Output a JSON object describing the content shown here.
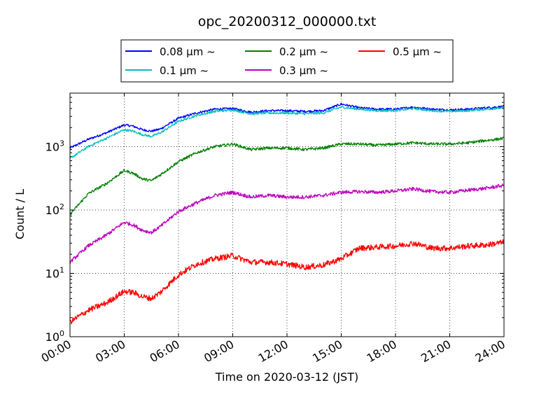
{
  "chart_data": {
    "type": "line",
    "title": "opc_20200312_000000.txt",
    "xlabel": "Time on 2020-03-12 (JST)",
    "ylabel": "Count / L",
    "yscale": "log",
    "ylim": [
      1,
      7000
    ],
    "xlim": [
      "00:00",
      "24:00"
    ],
    "grid": true,
    "legend_placement": "top-center, above plot",
    "x_ticks": [
      "00:00",
      "03:00",
      "06:00",
      "09:00",
      "12:00",
      "15:00",
      "18:00",
      "21:00",
      "24:00"
    ],
    "y_ticks": [
      {
        "value": 1,
        "base": "10",
        "exp": "0"
      },
      {
        "value": 10,
        "base": "10",
        "exp": "1"
      },
      {
        "value": 100,
        "base": "10",
        "exp": "2"
      },
      {
        "value": 1000,
        "base": "10",
        "exp": "3"
      }
    ],
    "x": [
      "00:00",
      "01:00",
      "02:00",
      "03:00",
      "03:30",
      "04:00",
      "04:30",
      "05:00",
      "06:00",
      "07:00",
      "08:00",
      "09:00",
      "10:00",
      "11:00",
      "12:00",
      "13:00",
      "14:00",
      "15:00",
      "16:00",
      "17:00",
      "18:00",
      "19:00",
      "20:00",
      "21:00",
      "22:00",
      "23:00",
      "24:00"
    ],
    "series": [
      {
        "name": "0.08 μm ~",
        "color": "#0000ff",
        "values": [
          950,
          1300,
          1650,
          2200,
          2100,
          1850,
          1750,
          1900,
          2800,
          3400,
          3900,
          4000,
          3500,
          3700,
          3700,
          3600,
          3700,
          4700,
          4100,
          3900,
          3900,
          4200,
          3900,
          3800,
          3900,
          4100,
          4300
        ]
      },
      {
        "name": "0.1 μm ~",
        "color": "#00bfbf",
        "values": [
          650,
          1000,
          1350,
          1850,
          1750,
          1550,
          1450,
          1650,
          2500,
          3100,
          3600,
          3800,
          3300,
          3400,
          3400,
          3300,
          3400,
          4200,
          3900,
          3700,
          3700,
          4000,
          3700,
          3600,
          3700,
          3900,
          4100
        ]
      },
      {
        "name": "0.2 μm ~",
        "color": "#008000",
        "values": [
          85,
          180,
          260,
          420,
          380,
          310,
          290,
          360,
          580,
          800,
          1000,
          1100,
          900,
          950,
          950,
          900,
          950,
          1100,
          1100,
          1050,
          1100,
          1150,
          1100,
          1100,
          1150,
          1250,
          1350
        ]
      },
      {
        "name": "0.3 μm ~",
        "color": "#bf00bf",
        "values": [
          15,
          27,
          40,
          64,
          58,
          48,
          44,
          55,
          95,
          130,
          170,
          190,
          160,
          170,
          160,
          160,
          170,
          190,
          195,
          190,
          200,
          215,
          195,
          190,
          205,
          220,
          245
        ]
      },
      {
        "name": "0.5 μm ~",
        "color": "#ff0000",
        "values": [
          1.7,
          2.6,
          3.4,
          5.2,
          5.0,
          4.3,
          4.0,
          5.0,
          9.5,
          14,
          17,
          19,
          15,
          15,
          14,
          12.5,
          13.5,
          17,
          25,
          26,
          27,
          30,
          25,
          25,
          27,
          28,
          31
        ]
      }
    ]
  }
}
